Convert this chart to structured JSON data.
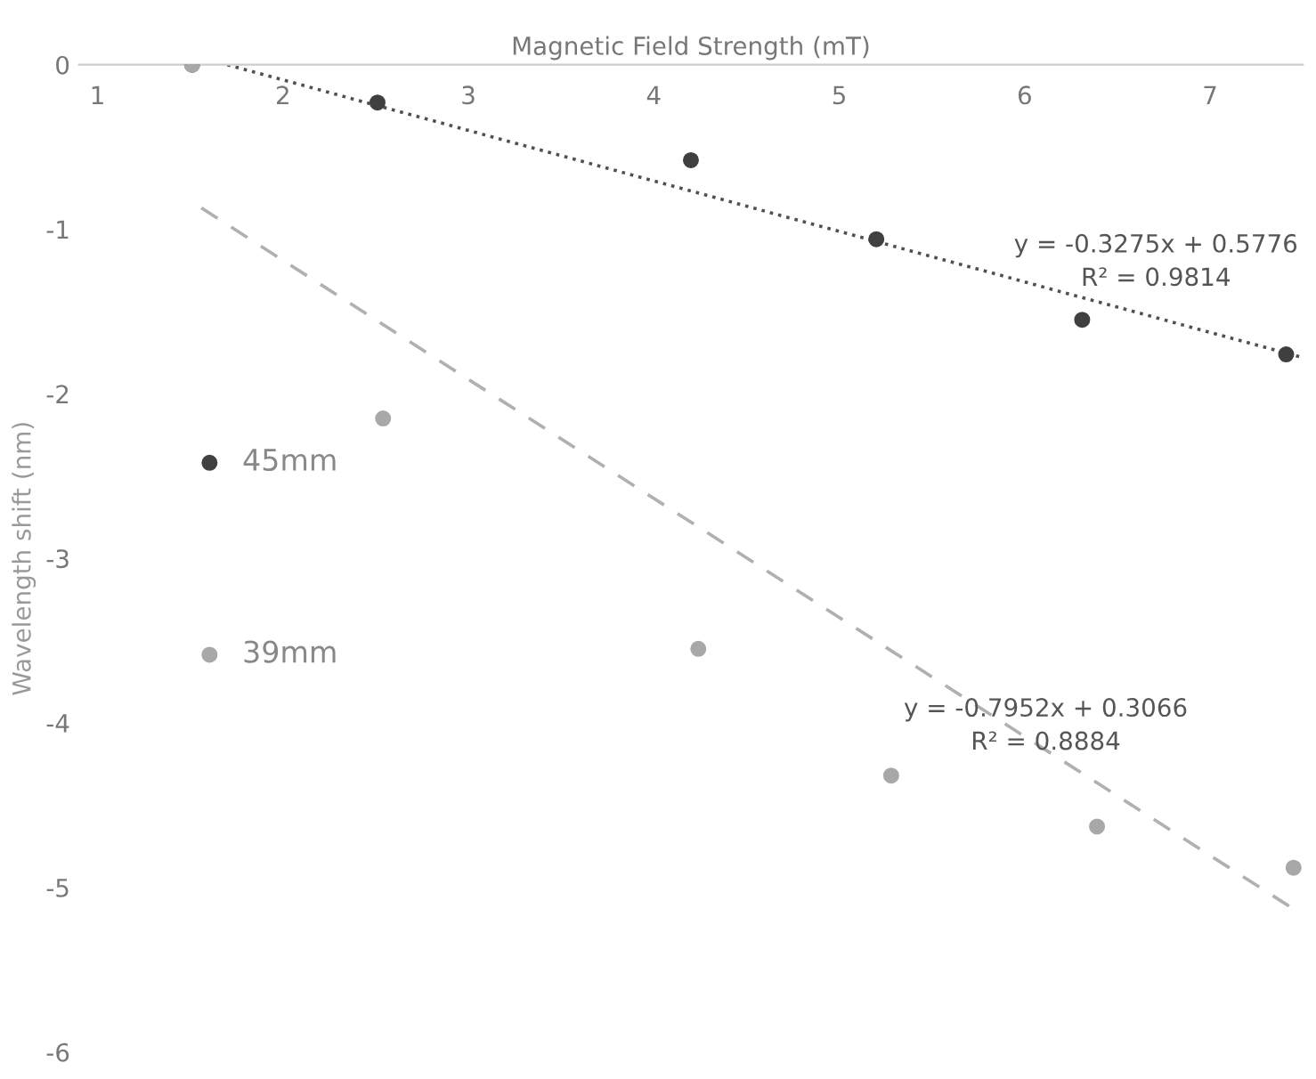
{
  "chart_data": {
    "type": "scatter",
    "xlabel": "Magnetic Field Strength (mT)",
    "ylabel": "Wavelength shift (nm)",
    "xlim": [
      0.9,
      7.5
    ],
    "xticks": [
      1,
      2,
      3,
      4,
      5,
      6,
      7
    ],
    "ylim": [
      -6,
      0
    ],
    "yticks": [
      0,
      -1,
      -2,
      -3,
      -4,
      -5,
      -6
    ],
    "grid": false,
    "legend": "left",
    "marker": "circle",
    "series": [
      {
        "name": "45mm",
        "color": "#404040",
        "x": [
          1.51,
          2.51,
          4.2,
          5.2,
          6.31,
          7.41
        ],
        "values": [
          0,
          -0.23,
          -0.58,
          -1.06,
          -1.55,
          -1.76
        ]
      },
      {
        "name": "39mm",
        "color": "#a8a8a8",
        "x": [
          1.51,
          2.54,
          4.24,
          5.28,
          6.39,
          7.45
        ],
        "values": [
          0,
          -2.15,
          -3.55,
          -4.32,
          -4.63,
          -4.88
        ]
      },
      {
        "type": "line",
        "color": "#505050",
        "line_style": "dotted",
        "marker": "none",
        "x": [
          1.7,
          7.5
        ],
        "values": [
          0,
          -1.78
        ]
      },
      {
        "type": "line",
        "color": "#b0b0b0",
        "line_style": "dashed",
        "marker": "none",
        "x": [
          1.56,
          7.49
        ],
        "values": [
          -0.87,
          -5.16
        ]
      }
    ],
    "annotations": [
      "y = -0.3275x + 0.5776\nR² = 0.9814",
      "y = -0.7952x + 0.3066\nR² = 0.8884"
    ]
  }
}
